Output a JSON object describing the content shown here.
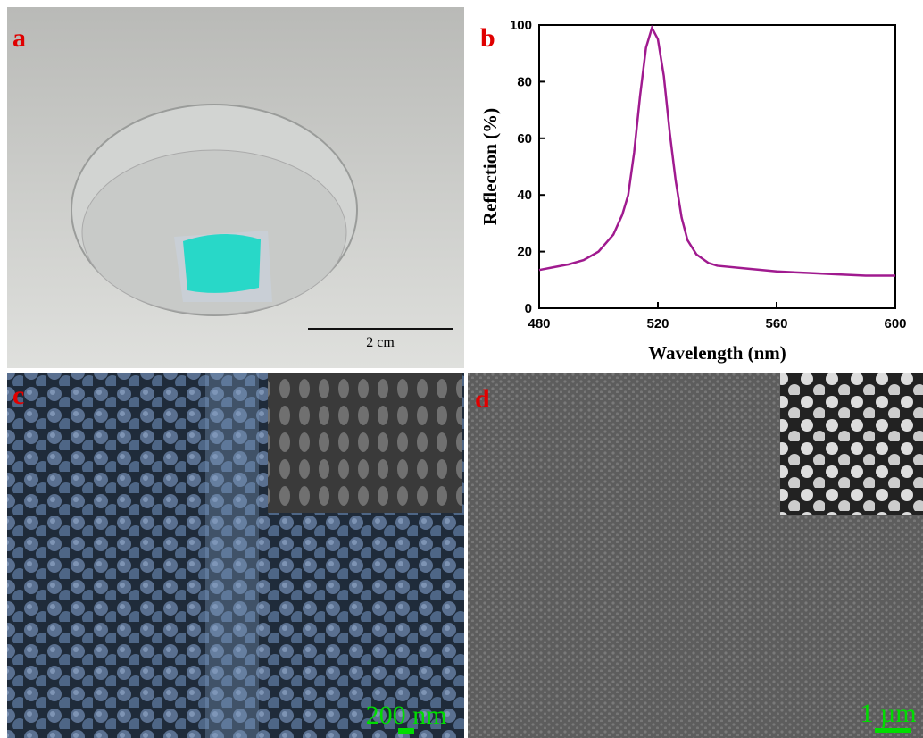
{
  "panels": {
    "a": {
      "label": "a",
      "scale_bar": "2 cm"
    },
    "b": {
      "label": "b"
    },
    "c": {
      "label": "c",
      "scale_bar": "200 nm"
    },
    "d": {
      "label": "d",
      "scale_bar": "1 µm"
    }
  },
  "chart_data": {
    "type": "line",
    "x_label": "Wavelength (nm)",
    "y_label": "Reflection (%)",
    "x": [
      480,
      485,
      490,
      495,
      500,
      505,
      508,
      510,
      512,
      514,
      516,
      518,
      520,
      522,
      524,
      526,
      528,
      530,
      533,
      537,
      540,
      550,
      560,
      570,
      580,
      590,
      600
    ],
    "series": [
      {
        "color": "#a01a8f",
        "values": [
          13.5,
          14.5,
          15.5,
          17,
          20,
          26,
          33,
          40,
          55,
          75,
          92,
          99,
          95,
          82,
          62,
          45,
          32,
          24,
          19,
          16,
          15,
          14,
          13,
          12.5,
          12,
          11.5,
          11.5
        ]
      }
    ],
    "xlim": [
      480,
      600
    ],
    "xticks": [
      480,
      520,
      560,
      600
    ],
    "ylim": [
      0,
      100
    ],
    "yticks": [
      0,
      20,
      40,
      60,
      80,
      100
    ]
  }
}
